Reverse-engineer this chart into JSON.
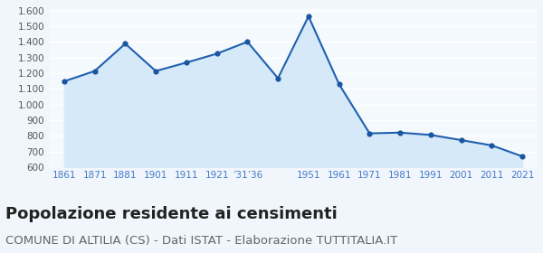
{
  "years": [
    1861,
    1871,
    1881,
    1901,
    1911,
    1921,
    1931,
    1936,
    1951,
    1961,
    1971,
    1981,
    1991,
    2001,
    2011,
    2021
  ],
  "population": [
    1148,
    1214,
    1389,
    1214,
    1268,
    1325,
    1401,
    1168,
    1564,
    1130,
    815,
    820,
    805,
    772,
    738,
    668
  ],
  "x_labels": [
    "1861",
    "1871",
    "1881",
    "1901",
    "1911",
    "1921",
    "’31",
    "’36",
    "1951",
    "1961",
    "1971",
    "1981",
    "1991",
    "2001",
    "2011",
    "2021"
  ],
  "line_color": "#2060b0",
  "fill_color": "#d6e9f8",
  "marker_color": "#1a55a0",
  "bg_color": "#f4f9fd",
  "grid_color": "#ffffff",
  "ylim": [
    600,
    1620
  ],
  "yticks": [
    600,
    700,
    800,
    900,
    1000,
    1100,
    1200,
    1300,
    1400,
    1500,
    1600
  ],
  "title": "Popolazione residente ai censimenti",
  "subtitle": "COMUNE DI ALTILIA (CS) - Dati ISTAT - Elaborazione TUTTITALIA.IT",
  "title_fontsize": 13,
  "subtitle_fontsize": 9.5,
  "tick_color": "#4477cc",
  "tick_fontsize": 7.5
}
